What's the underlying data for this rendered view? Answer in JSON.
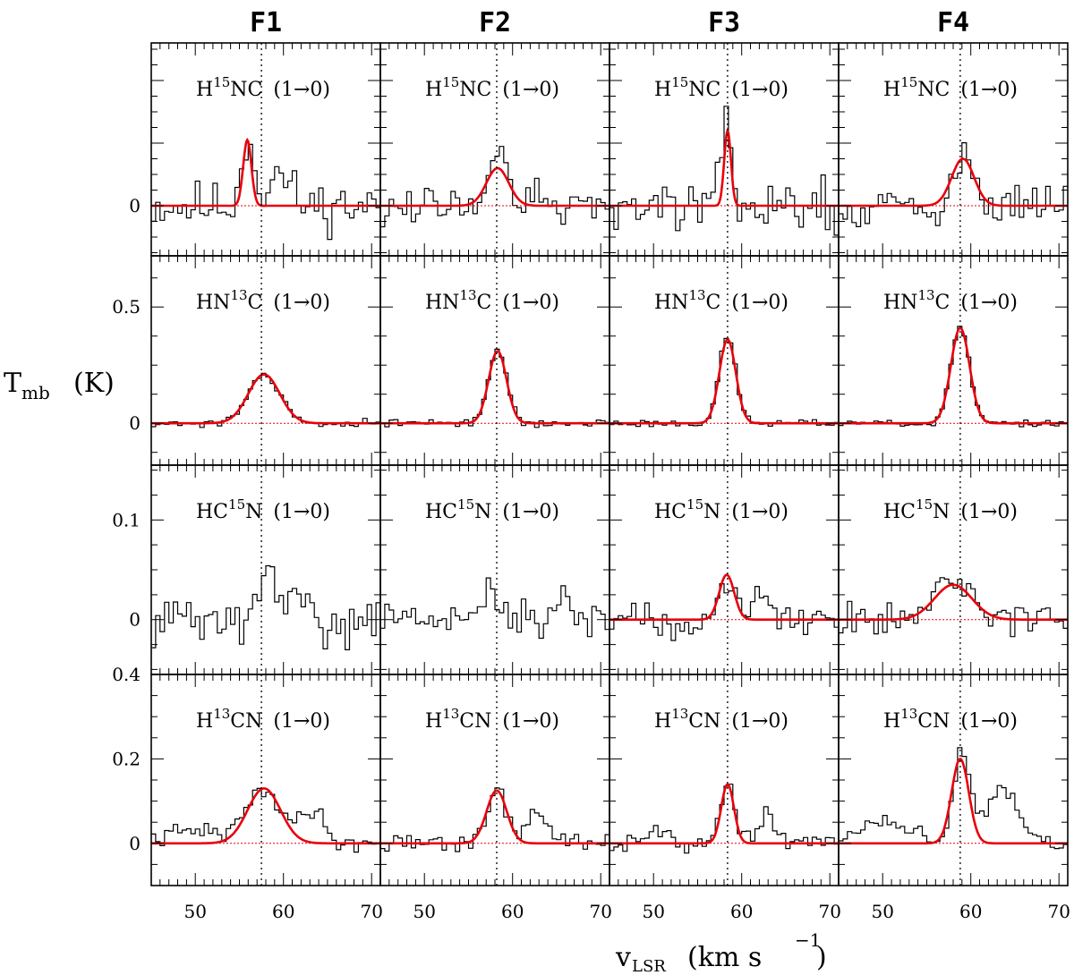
{
  "chart_data": {
    "type": "line",
    "xlabel": "v",
    "xlabel_sub": "LSR",
    "xlabel_units_open": "(km s",
    "xlabel_units_exp": "−1",
    "xlabel_units_close": ")",
    "ylabel": "T",
    "ylabel_sub": "mb",
    "ylabel_units": "(K)",
    "xlim": [
      45,
      71
    ],
    "xticks": [
      50,
      60,
      70
    ],
    "xtick_labels": [
      "50",
      "60",
      "70"
    ],
    "columns": [
      {
        "title": "F1",
        "vline": 57.5
      },
      {
        "title": "F2",
        "vline": 58.2
      },
      {
        "title": "F3",
        "vline": 58.4
      },
      {
        "title": "F4",
        "vline": 58.8
      }
    ],
    "rows": [
      {
        "molecule": {
          "pre": "H",
          "sup": "15",
          "post": "NC"
        },
        "transition": "(1→0)",
        "ylim": [
          -0.08,
          0.26
        ],
        "ytick_labels": [
          {
            "value": 0,
            "label": "0"
          }
        ],
        "spectra": [
          {
            "gauss": {
              "amp": 0.105,
              "center": 55.9,
              "fwhm": 1.1
            },
            "seed": 11,
            "noise": 0.028,
            "bumps": [
              {
                "c": 56.0,
                "a": 0.11,
                "w": 0.7
              },
              {
                "c": 59.5,
                "a": 0.05,
                "w": 1.2
              }
            ]
          },
          {
            "gauss": {
              "amp": 0.06,
              "center": 58.3,
              "fwhm": 3.0
            },
            "seed": 12,
            "noise": 0.028,
            "bumps": [
              {
                "c": 58.3,
                "a": 0.065,
                "w": 1.4
              }
            ]
          },
          {
            "gauss": {
              "amp": 0.12,
              "center": 58.4,
              "fwhm": 0.9
            },
            "seed": 13,
            "noise": 0.028,
            "bumps": [
              {
                "c": 58.4,
                "a": 0.125,
                "w": 0.6
              }
            ]
          },
          {
            "gauss": {
              "amp": 0.075,
              "center": 59.1,
              "fwhm": 3.0
            },
            "seed": 14,
            "noise": 0.03,
            "bumps": [
              {
                "c": 59.1,
                "a": 0.075,
                "w": 1.4
              }
            ]
          }
        ]
      },
      {
        "molecule": {
          "pre": "HN",
          "sup": "13",
          "post": "C"
        },
        "transition": "(1→0)",
        "ylim": [
          -0.18,
          0.72
        ],
        "ytick_labels": [
          {
            "value": 0,
            "label": "0"
          },
          {
            "value": 0.5,
            "label": "0.5"
          }
        ],
        "spectra": [
          {
            "gauss": {
              "amp": 0.21,
              "center": 57.8,
              "fwhm": 4.2
            },
            "seed": 21,
            "noise": 0.012,
            "bumps": [
              {
                "c": 57.8,
                "a": 0.21,
                "w": 1.8
              }
            ]
          },
          {
            "gauss": {
              "amp": 0.31,
              "center": 58.3,
              "fwhm": 2.4
            },
            "seed": 22,
            "noise": 0.012,
            "bumps": [
              {
                "c": 58.3,
                "a": 0.33,
                "w": 1.0
              }
            ]
          },
          {
            "gauss": {
              "amp": 0.36,
              "center": 58.4,
              "fwhm": 2.2
            },
            "seed": 23,
            "noise": 0.012,
            "bumps": [
              {
                "c": 58.4,
                "a": 0.37,
                "w": 0.95
              }
            ]
          },
          {
            "gauss": {
              "amp": 0.41,
              "center": 58.8,
              "fwhm": 2.5
            },
            "seed": 24,
            "noise": 0.012,
            "bumps": [
              {
                "c": 58.8,
                "a": 0.42,
                "w": 1.05
              }
            ]
          }
        ]
      },
      {
        "molecule": {
          "pre": "HC",
          "sup": "15",
          "post": "N"
        },
        "transition": "(1→0)",
        "ylim": [
          -0.055,
          0.155
        ],
        "ytick_labels": [
          {
            "value": 0,
            "label": "0"
          },
          {
            "value": 0.1,
            "label": "0.1"
          }
        ],
        "spectra": [
          {
            "gauss": null,
            "seed": 31,
            "noise": 0.018,
            "bumps": [
              {
                "c": 58.2,
                "a": 0.06,
                "w": 0.5
              },
              {
                "c": 61.2,
                "a": 0.025,
                "w": 1.2
              }
            ]
          },
          {
            "gauss": null,
            "seed": 32,
            "noise": 0.018,
            "bumps": [
              {
                "c": 57.8,
                "a": 0.03,
                "w": 1.0
              },
              {
                "c": 65.5,
                "a": 0.025,
                "w": 1.2
              }
            ]
          },
          {
            "gauss": {
              "amp": 0.045,
              "center": 58.3,
              "fwhm": 2.0
            },
            "seed": 33,
            "noise": 0.012,
            "bumps": [
              {
                "c": 58.3,
                "a": 0.045,
                "w": 0.9
              },
              {
                "c": 62.5,
                "a": 0.025,
                "w": 1.0
              }
            ]
          },
          {
            "gauss": {
              "amp": 0.035,
              "center": 58.0,
              "fwhm": 5.0
            },
            "seed": 34,
            "noise": 0.012,
            "bumps": [
              {
                "c": 58.0,
                "a": 0.04,
                "w": 2.0
              }
            ]
          }
        ]
      },
      {
        "molecule": {
          "pre": "H",
          "sup": "13",
          "post": "CN"
        },
        "transition": "(1→0)",
        "ylim": [
          -0.1,
          0.4
        ],
        "ytick_labels": [
          {
            "value": 0,
            "label": "0"
          },
          {
            "value": 0.2,
            "label": "0.2"
          },
          {
            "value": 0.4,
            "label": "0.4"
          }
        ],
        "spectra": [
          {
            "gauss": {
              "amp": 0.13,
              "center": 57.8,
              "fwhm": 4.4
            },
            "seed": 41,
            "noise": 0.015,
            "bumps": [
              {
                "c": 57.8,
                "a": 0.13,
                "w": 1.9
              },
              {
                "c": 63.2,
                "a": 0.08,
                "w": 1.3
              },
              {
                "c": 50.0,
                "a": 0.03,
                "w": 3.0
              }
            ]
          },
          {
            "gauss": {
              "amp": 0.125,
              "center": 58.2,
              "fwhm": 2.7
            },
            "seed": 42,
            "noise": 0.015,
            "bumps": [
              {
                "c": 58.2,
                "a": 0.125,
                "w": 1.1
              },
              {
                "c": 62.8,
                "a": 0.08,
                "w": 1.1
              }
            ]
          },
          {
            "gauss": {
              "amp": 0.14,
              "center": 58.4,
              "fwhm": 1.7
            },
            "seed": 43,
            "noise": 0.015,
            "bumps": [
              {
                "c": 58.4,
                "a": 0.14,
                "w": 0.75
              },
              {
                "c": 62.8,
                "a": 0.07,
                "w": 1.1
              },
              {
                "c": 50.5,
                "a": 0.03,
                "w": 1.5
              }
            ]
          },
          {
            "gauss": {
              "amp": 0.2,
              "center": 58.8,
              "fwhm": 2.3
            },
            "seed": 44,
            "noise": 0.015,
            "bumps": [
              {
                "c": 59.0,
                "a": 0.22,
                "w": 0.9
              },
              {
                "c": 63.5,
                "a": 0.12,
                "w": 1.8
              },
              {
                "c": 50.5,
                "a": 0.06,
                "w": 2.5
              }
            ]
          }
        ]
      }
    ]
  }
}
